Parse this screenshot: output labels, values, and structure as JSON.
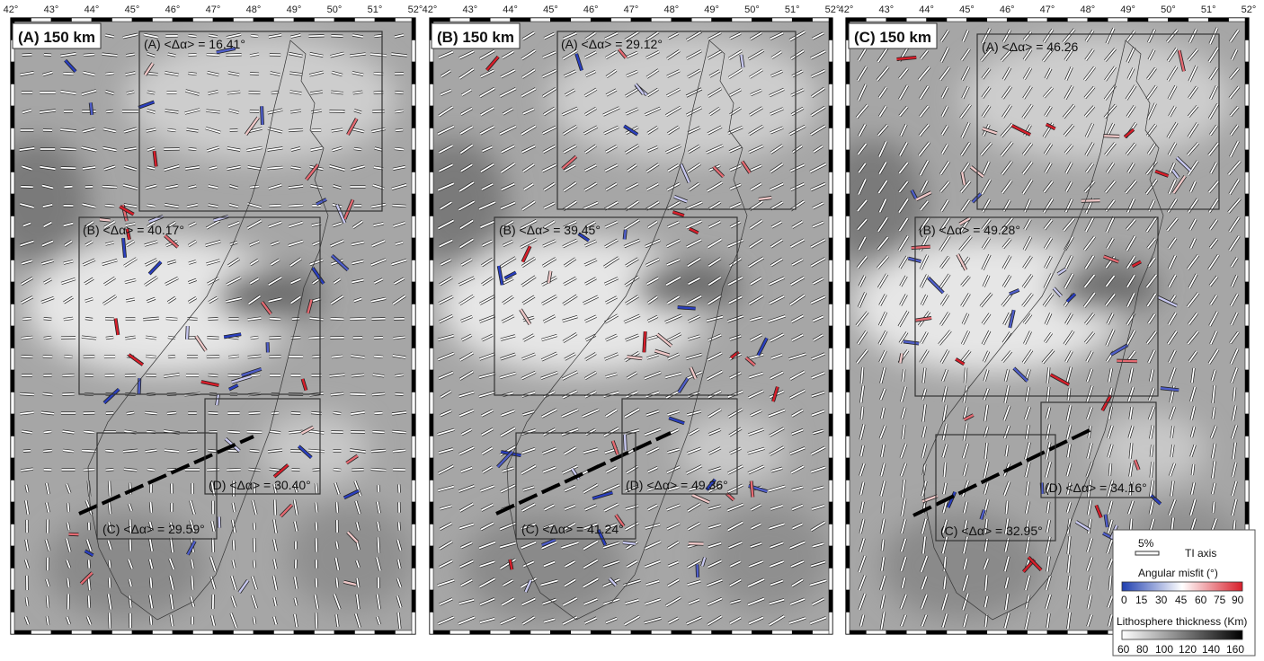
{
  "longitude_ticks": [
    "42°",
    "43°",
    "44°",
    "45°",
    "46°",
    "47°",
    "48°",
    "49°",
    "50°",
    "51°",
    "52°"
  ],
  "panels": [
    {
      "title": "(A) 150 km",
      "regions": [
        {
          "label": "(A) <Δα> = 16.41°"
        },
        {
          "label": "(B) <Δα> = 40.17°"
        },
        {
          "label": "(C) <Δα> = 29.59°"
        },
        {
          "label": "(D) <Δα> = 30.40°"
        }
      ]
    },
    {
      "title": "(B) 150 km",
      "regions": [
        {
          "label": "(A) <Δα> = 29.12°"
        },
        {
          "label": "(B) <Δα> = 39.45°"
        },
        {
          "label": "(C) <Δα> = 41.24°"
        },
        {
          "label": "(D) <Δα> = 49.36°"
        }
      ]
    },
    {
      "title": "(C) 150 km",
      "regions": [
        {
          "label": "(A) <Δα> = 46.26"
        },
        {
          "label": "(B) <Δα> = 49.28°"
        },
        {
          "label": "(C) <Δα> = 32.95°"
        },
        {
          "label": "(D) <Δα> = 34.16°"
        }
      ]
    }
  ],
  "legend": {
    "scale_label": "5%",
    "ti_axis_label": "TI axis",
    "misfit_title": "Angular misfit (°)",
    "misfit_ticks": [
      "0",
      "15",
      "30",
      "45",
      "60",
      "75",
      "90"
    ],
    "misfit_colors": {
      "low": "#1f3fb0",
      "mid": "#ffffff",
      "high": "#d81e2a"
    },
    "thickness_title": "Lithosphere thickness (Km)",
    "thickness_ticks": [
      "60",
      "80",
      "100",
      "120",
      "140",
      "160"
    ],
    "thickness_colors": {
      "low": "#ffffff",
      "high": "#000000"
    }
  },
  "colors": {
    "map_background": "#a8a8a8",
    "fast_axis": "#ffffff",
    "coastline": "#333333",
    "profile_line": "#000000"
  }
}
